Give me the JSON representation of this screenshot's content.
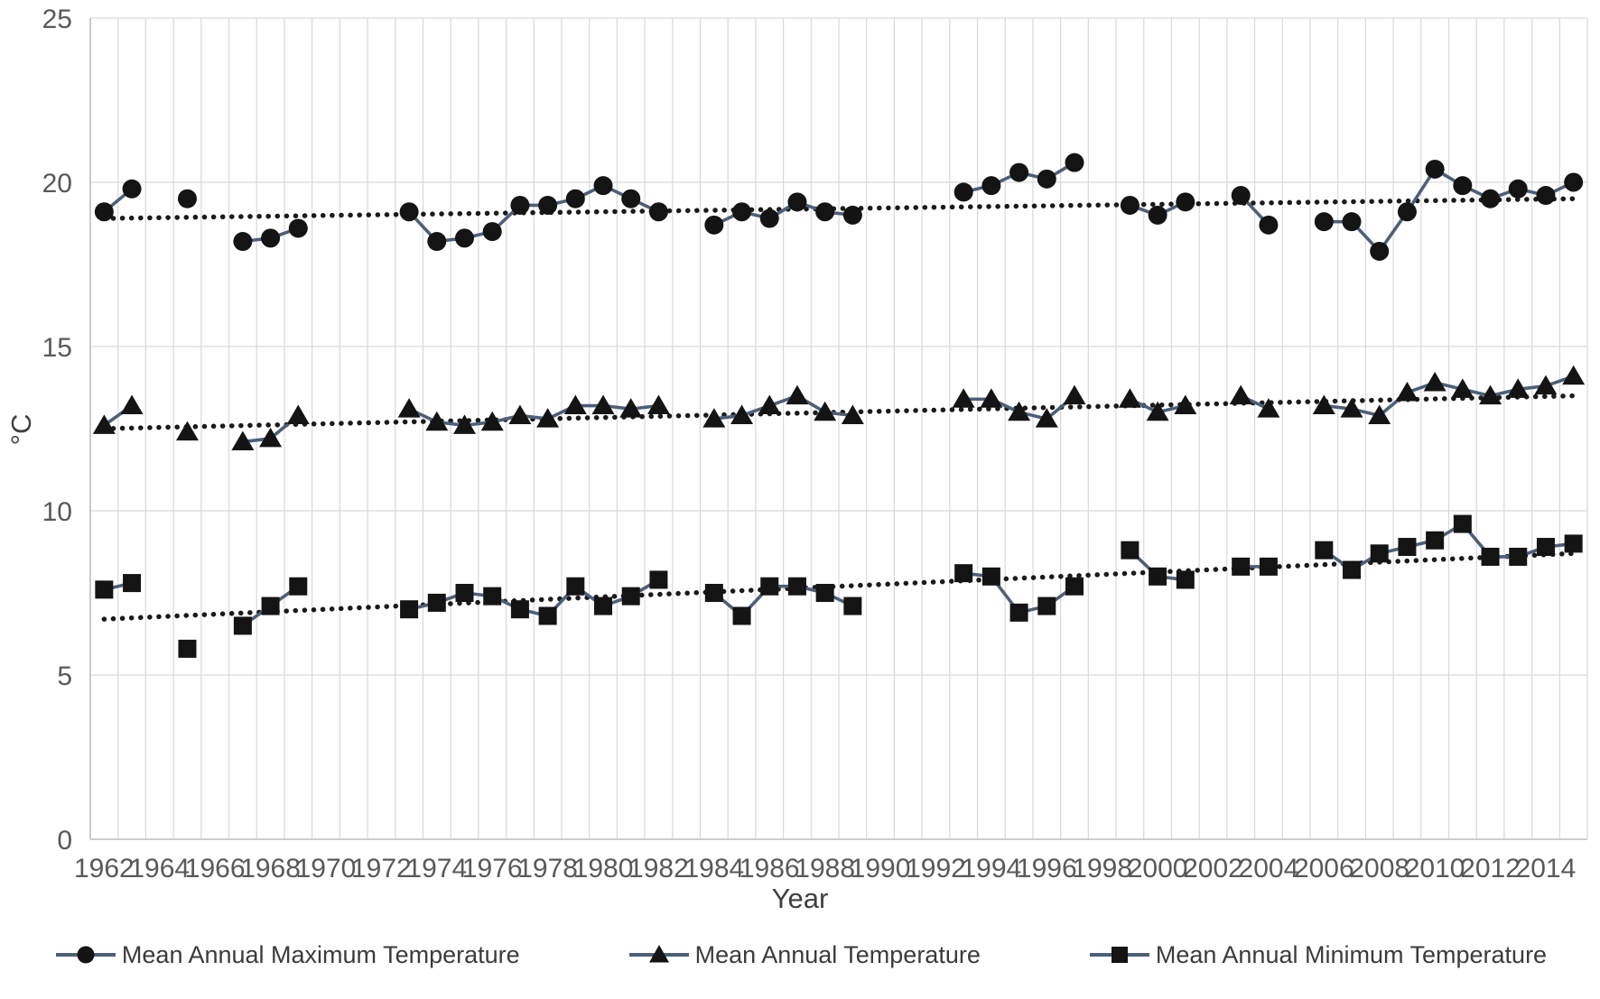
{
  "chart_data": {
    "type": "line",
    "title": "",
    "xlabel": "Year",
    "ylabel": "°C",
    "ylim": [
      0,
      25
    ],
    "yticks": [
      0,
      5,
      10,
      15,
      20,
      25
    ],
    "xticks": [
      1962,
      1964,
      1966,
      1968,
      1970,
      1972,
      1974,
      1976,
      1978,
      1980,
      1982,
      1984,
      1986,
      1988,
      1990,
      1992,
      1994,
      1996,
      1998,
      2000,
      2002,
      2004,
      2006,
      2008,
      2010,
      2012,
      2014
    ],
    "x_range": [
      1962,
      2015
    ],
    "grid": "vertical gridline per year, horizontal every 5 °C",
    "legend_position": "bottom",
    "missing_years": [
      1964,
      1966,
      1970,
      1971,
      1972,
      1983,
      1990,
      1991,
      1992,
      1998,
      2002,
      2005
    ],
    "colors": {
      "line": "#4d5f78",
      "marker": "#141414",
      "trend": "#1a1a1a",
      "grid": "#d9d9d9",
      "axis": "#bfbfbf",
      "tick_text": "#595959"
    },
    "series": [
      {
        "name": "Mean Annual Maximum Temperature",
        "marker": "circle",
        "trend": {
          "start": 18.9,
          "end": 19.5
        },
        "points": [
          [
            1962,
            19.1
          ],
          [
            1963,
            19.8
          ],
          [
            1965,
            19.5
          ],
          [
            1967,
            18.2
          ],
          [
            1968,
            18.3
          ],
          [
            1969,
            18.6
          ],
          [
            1973,
            19.1
          ],
          [
            1974,
            18.2
          ],
          [
            1975,
            18.3
          ],
          [
            1976,
            18.5
          ],
          [
            1977,
            19.3
          ],
          [
            1978,
            19.3
          ],
          [
            1979,
            19.5
          ],
          [
            1980,
            19.9
          ],
          [
            1981,
            19.5
          ],
          [
            1982,
            19.1
          ],
          [
            1984,
            18.7
          ],
          [
            1985,
            19.1
          ],
          [
            1986,
            18.9
          ],
          [
            1987,
            19.4
          ],
          [
            1988,
            19.1
          ],
          [
            1989,
            19.0
          ],
          [
            1993,
            19.7
          ],
          [
            1994,
            19.9
          ],
          [
            1995,
            20.3
          ],
          [
            1996,
            20.1
          ],
          [
            1997,
            20.6
          ],
          [
            1999,
            19.3
          ],
          [
            2000,
            19.0
          ],
          [
            2001,
            19.4
          ],
          [
            2003,
            19.6
          ],
          [
            2004,
            18.7
          ],
          [
            2006,
            18.8
          ],
          [
            2007,
            18.8
          ],
          [
            2008,
            17.9
          ],
          [
            2009,
            19.1
          ],
          [
            2010,
            20.4
          ],
          [
            2011,
            19.9
          ],
          [
            2012,
            19.5
          ],
          [
            2013,
            19.8
          ],
          [
            2014,
            19.6
          ],
          [
            2015,
            20.0
          ]
        ]
      },
      {
        "name": "Mean Annual Temperature",
        "marker": "triangle",
        "trend": {
          "start": 12.5,
          "end": 13.5
        },
        "points": [
          [
            1962,
            12.6
          ],
          [
            1963,
            13.2
          ],
          [
            1965,
            12.4
          ],
          [
            1967,
            12.1
          ],
          [
            1968,
            12.2
          ],
          [
            1969,
            12.9
          ],
          [
            1973,
            13.1
          ],
          [
            1974,
            12.7
          ],
          [
            1975,
            12.6
          ],
          [
            1976,
            12.7
          ],
          [
            1977,
            12.9
          ],
          [
            1978,
            12.8
          ],
          [
            1979,
            13.2
          ],
          [
            1980,
            13.2
          ],
          [
            1981,
            13.1
          ],
          [
            1982,
            13.2
          ],
          [
            1984,
            12.8
          ],
          [
            1985,
            12.9
          ],
          [
            1986,
            13.2
          ],
          [
            1987,
            13.5
          ],
          [
            1988,
            13.0
          ],
          [
            1989,
            12.9
          ],
          [
            1993,
            13.4
          ],
          [
            1994,
            13.4
          ],
          [
            1995,
            13.0
          ],
          [
            1996,
            12.8
          ],
          [
            1997,
            13.5
          ],
          [
            1999,
            13.4
          ],
          [
            2000,
            13.0
          ],
          [
            2001,
            13.2
          ],
          [
            2003,
            13.5
          ],
          [
            2004,
            13.1
          ],
          [
            2006,
            13.2
          ],
          [
            2007,
            13.1
          ],
          [
            2008,
            12.9
          ],
          [
            2009,
            13.6
          ],
          [
            2010,
            13.9
          ],
          [
            2011,
            13.7
          ],
          [
            2012,
            13.5
          ],
          [
            2013,
            13.7
          ],
          [
            2014,
            13.8
          ],
          [
            2015,
            14.1
          ]
        ]
      },
      {
        "name": "Mean Annual Minimum Temperature",
        "marker": "square",
        "trend": {
          "start": 6.7,
          "end": 8.7
        },
        "points": [
          [
            1962,
            7.6
          ],
          [
            1963,
            7.8
          ],
          [
            1965,
            5.8
          ],
          [
            1967,
            6.5
          ],
          [
            1968,
            7.1
          ],
          [
            1969,
            7.7
          ],
          [
            1973,
            7.0
          ],
          [
            1974,
            7.2
          ],
          [
            1975,
            7.5
          ],
          [
            1976,
            7.4
          ],
          [
            1977,
            7.0
          ],
          [
            1978,
            6.8
          ],
          [
            1979,
            7.7
          ],
          [
            1980,
            7.1
          ],
          [
            1981,
            7.4
          ],
          [
            1982,
            7.9
          ],
          [
            1984,
            7.5
          ],
          [
            1985,
            6.8
          ],
          [
            1986,
            7.7
          ],
          [
            1987,
            7.7
          ],
          [
            1988,
            7.5
          ],
          [
            1989,
            7.1
          ],
          [
            1993,
            8.1
          ],
          [
            1994,
            8.0
          ],
          [
            1995,
            6.9
          ],
          [
            1996,
            7.1
          ],
          [
            1997,
            7.7
          ],
          [
            1999,
            8.8
          ],
          [
            2000,
            8.0
          ],
          [
            2001,
            7.9
          ],
          [
            2003,
            8.3
          ],
          [
            2004,
            8.3
          ],
          [
            2006,
            8.8
          ],
          [
            2007,
            8.2
          ],
          [
            2008,
            8.7
          ],
          [
            2009,
            8.9
          ],
          [
            2010,
            9.1
          ],
          [
            2011,
            9.6
          ],
          [
            2012,
            8.6
          ],
          [
            2013,
            8.6
          ],
          [
            2014,
            8.9
          ],
          [
            2015,
            9.0
          ]
        ]
      }
    ]
  }
}
